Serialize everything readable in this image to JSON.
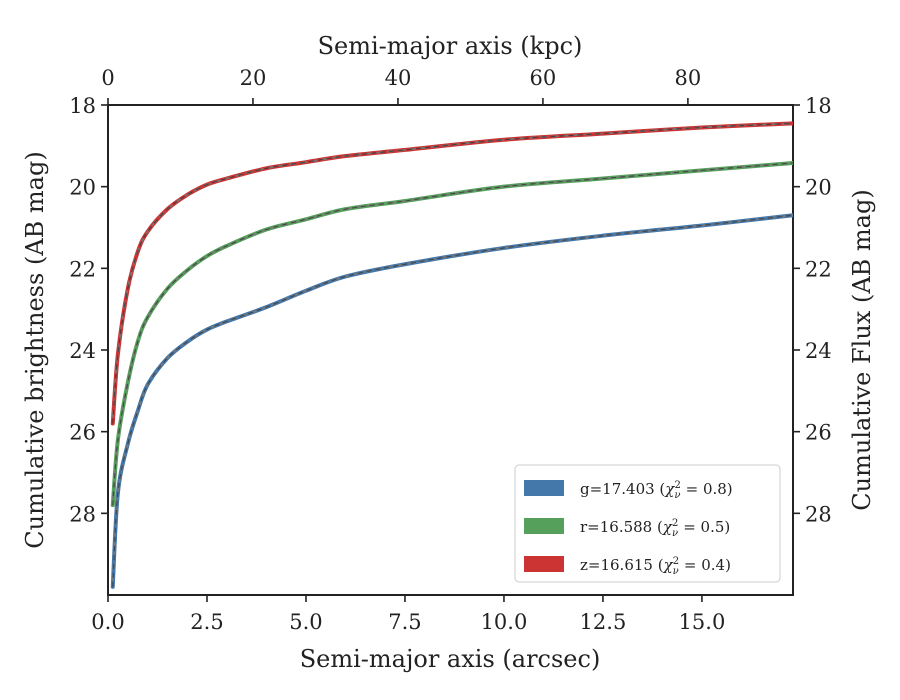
{
  "chart_data": {
    "type": "line",
    "xlabel_bottom": "Semi-major axis (arcsec)",
    "xlabel_top": "Semi-major axis (kpc)",
    "ylabel_left": "Cumulative brightness (AB mag)",
    "ylabel_right": "Cumulative Flux (AB mag)",
    "xlim": [
      0,
      17.3
    ],
    "ylim": [
      30,
      18
    ],
    "top_xlim": [
      0,
      94.5
    ],
    "x_ticks": [
      "0.0",
      "2.5",
      "5.0",
      "7.5",
      "10.0",
      "12.5",
      "15.0"
    ],
    "x_tick_values": [
      0,
      2.5,
      5,
      7.5,
      10,
      12.5,
      15
    ],
    "top_ticks": [
      "0",
      "20",
      "40",
      "60",
      "80"
    ],
    "top_tick_values": [
      0,
      20,
      40,
      60,
      80
    ],
    "y_ticks": [
      "18",
      "20",
      "22",
      "24",
      "26",
      "28"
    ],
    "y_tick_values": [
      18,
      20,
      22,
      24,
      26,
      28
    ],
    "legend_position": "lower-right",
    "grid": false,
    "series": [
      {
        "name": "g=17.403",
        "chi_label": "χ",
        "chi_sub": "ν",
        "chi_sup": "2",
        "chi_value": " = 0.8)",
        "color": "#4477AA",
        "x": [
          0.12,
          0.25,
          0.5,
          0.75,
          1.0,
          1.5,
          2.0,
          2.5,
          3.0,
          4.0,
          5.0,
          6.0,
          7.5,
          10.0,
          12.5,
          15.0,
          17.3
        ],
        "y": [
          29.8,
          27.5,
          26.3,
          25.5,
          24.85,
          24.2,
          23.8,
          23.5,
          23.3,
          22.95,
          22.55,
          22.2,
          21.9,
          21.5,
          21.2,
          20.95,
          20.7
        ]
      },
      {
        "name": "r=16.588",
        "chi_label": "χ",
        "chi_sub": "ν",
        "chi_sup": "2",
        "chi_value": " = 0.5)",
        "color": "#55A05A",
        "x": [
          0.12,
          0.25,
          0.5,
          0.75,
          1.0,
          1.5,
          2.0,
          2.5,
          3.0,
          4.0,
          5.0,
          6.0,
          7.5,
          10.0,
          12.5,
          15.0,
          17.3
        ],
        "y": [
          27.8,
          26.2,
          24.8,
          23.8,
          23.2,
          22.5,
          22.05,
          21.7,
          21.45,
          21.05,
          20.8,
          20.55,
          20.35,
          20.0,
          19.8,
          19.6,
          19.42
        ]
      },
      {
        "name": "z=16.615",
        "chi_label": "χ",
        "chi_sub": "ν",
        "chi_sup": "2",
        "chi_value": " = 0.4)",
        "color": "#CC3333",
        "x": [
          0.12,
          0.25,
          0.5,
          0.75,
          1.0,
          1.5,
          2.0,
          2.5,
          3.0,
          4.0,
          5.0,
          6.0,
          7.5,
          10.0,
          12.5,
          15.0,
          17.3
        ],
        "y": [
          25.8,
          24.1,
          22.5,
          21.6,
          21.1,
          20.55,
          20.2,
          19.95,
          19.8,
          19.55,
          19.4,
          19.25,
          19.1,
          18.85,
          18.7,
          18.55,
          18.45
        ]
      }
    ]
  }
}
